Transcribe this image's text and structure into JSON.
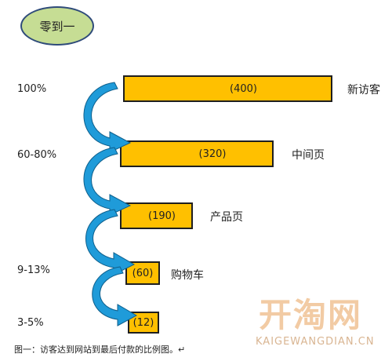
{
  "title": "零到一",
  "stages": [
    {
      "percent": "100%",
      "value": "(400)",
      "label": "新访客"
    },
    {
      "percent": "60-80%",
      "value": "(320)",
      "label": "中间页"
    },
    {
      "percent": "",
      "value": "(190)",
      "label": "产品页"
    },
    {
      "percent": "9-13%",
      "value": "(60)",
      "label": "购物车"
    },
    {
      "percent": "3-5%",
      "value": "(12)",
      "label": ""
    }
  ],
  "caption": "图一：访客达到网站到最后付款的比例图。↵",
  "watermark": {
    "logo": "开淘网",
    "url": "KAIGEWANGDIAN.CN"
  },
  "colors": {
    "bar": "#ffc000",
    "arrow": "#1f9bd9",
    "title_bg": "#c6dd94"
  }
}
